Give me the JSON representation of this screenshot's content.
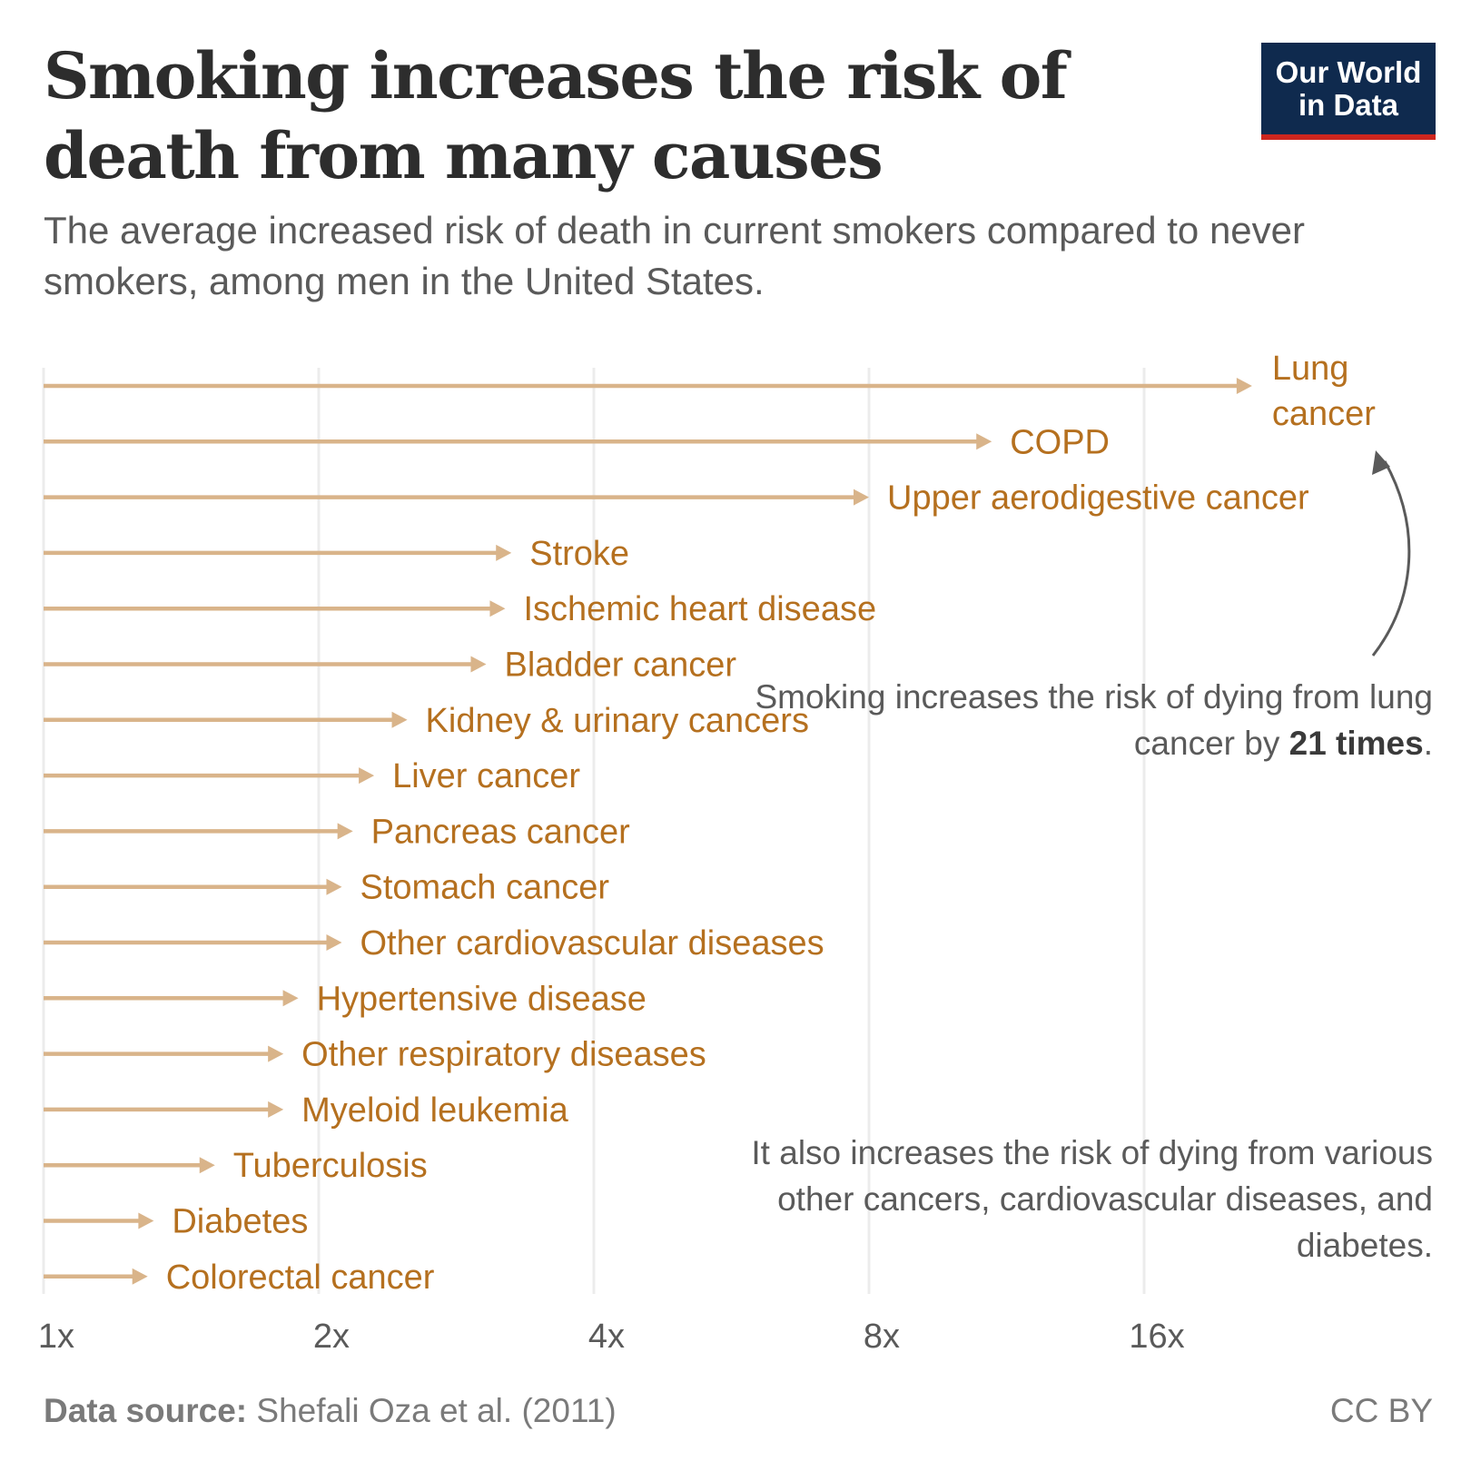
{
  "header": {
    "title": "Smoking increases the risk of death from many causes",
    "subtitle": "The average increased risk of death in current smokers compared to never smokers, among men in the United States.",
    "logo_line1": "Our World",
    "logo_line2": "in Data"
  },
  "annotations": {
    "lung_note_part1": "Smoking increases the risk of dying from lung cancer by ",
    "lung_note_bold": "21 times",
    "lung_note_part2": ".",
    "other_note": "It also increases the risk of dying from various other cancers, cardiovascular diseases, and diabetes."
  },
  "footer": {
    "source_label": "Data source:",
    "source_text": " Shefali Oza et al. (2011)",
    "license": "CC BY"
  },
  "colors": {
    "arrow": "#d9b48a",
    "label": "#b5701f",
    "grid": "#ececec",
    "annotation_arrow": "#5a5a5a"
  },
  "chart_data": {
    "type": "bar",
    "scale": "log2",
    "xlim": [
      1,
      23
    ],
    "ticks": [
      {
        "value": 1,
        "label": "1x"
      },
      {
        "value": 2,
        "label": "2x"
      },
      {
        "value": 4,
        "label": "4x"
      },
      {
        "value": 8,
        "label": "8x"
      },
      {
        "value": 16,
        "label": "16x"
      }
    ],
    "grid": true,
    "series": [
      {
        "categories": [
          "Lung cancer",
          "COPD",
          "Upper aerodigestive cancer",
          "Stroke",
          "Ischemic heart disease",
          "Bladder cancer",
          "Kidney & urinary cancers",
          "Liver cancer",
          "Pancreas cancer",
          "Stomach cancer",
          "Other cardiovascular diseases",
          "Hypertensive disease",
          "Other respiratory diseases",
          "Myeloid leukemia",
          "Tuberculosis",
          "Diabetes",
          "Colorectal cancer"
        ],
        "values": [
          21.0,
          10.9,
          8.0,
          3.25,
          3.2,
          3.05,
          2.5,
          2.3,
          2.18,
          2.12,
          2.12,
          1.9,
          1.83,
          1.83,
          1.54,
          1.32,
          1.3
        ]
      }
    ]
  }
}
